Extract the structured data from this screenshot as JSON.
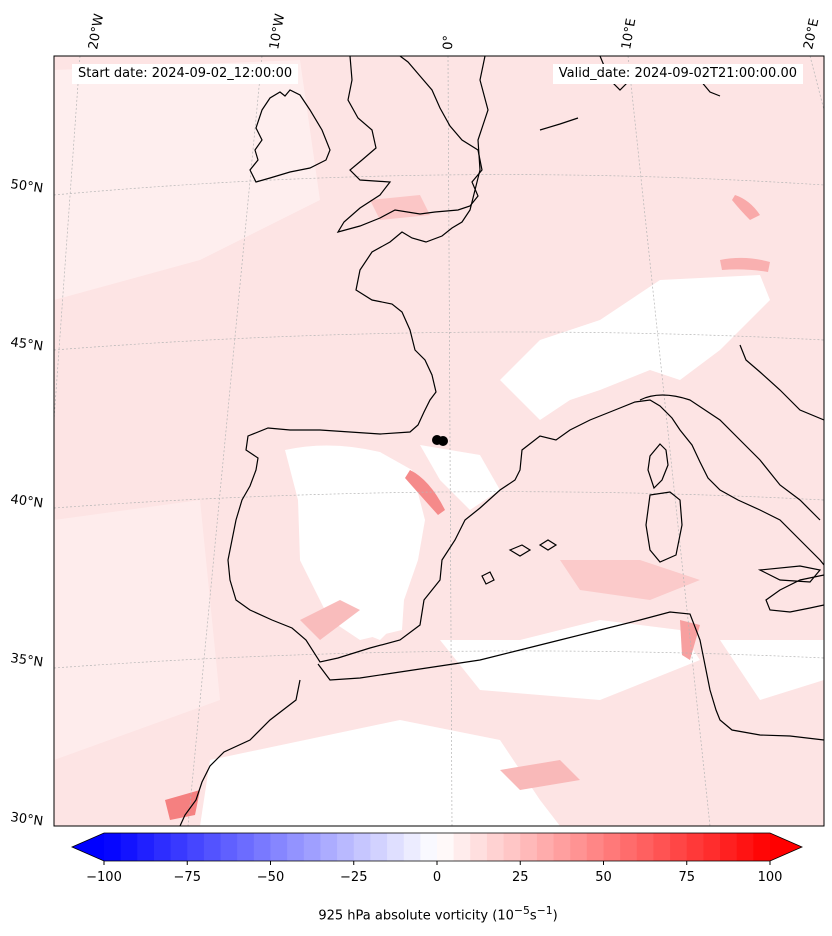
{
  "header": {
    "start_date": "Start date: 2024-09-02_12:00:00",
    "valid_date": "Valid_date: 2024-09-02T21:00:00.00"
  },
  "longitude_labels": [
    "20°W",
    "10°W",
    "0°",
    "10°E",
    "20°E"
  ],
  "latitude_labels": [
    "50°N",
    "45°N",
    "40°N",
    "35°N",
    "30°N"
  ],
  "colorbar": {
    "ticks": [
      "−100",
      "−75",
      "−50",
      "−25",
      "0",
      "25",
      "50",
      "75",
      "100"
    ],
    "label_prefix": "925 hPa absolute vorticity (10",
    "label_exp1": "−5",
    "label_mid": "s",
    "label_exp2": "−1",
    "label_suffix": ")",
    "min": -100,
    "max": 100,
    "negative_color": "#0000ff",
    "positive_color": "#ff0000"
  },
  "colors": {
    "background_field": "#fde3e3",
    "coastline": "#000000",
    "gridline": "#bbbbbb"
  }
}
